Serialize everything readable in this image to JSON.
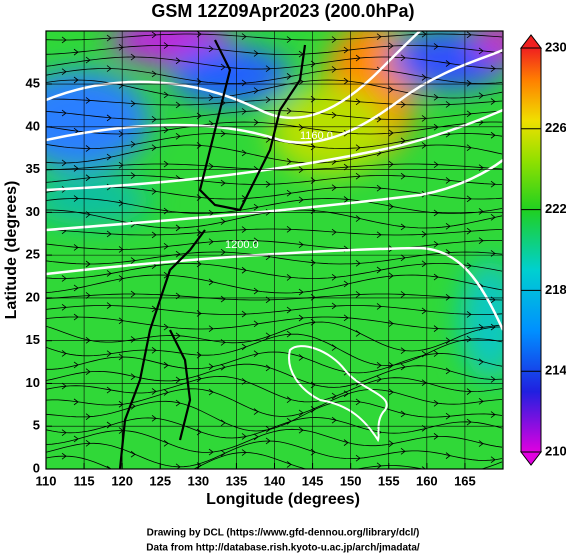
{
  "chart_data": {
    "type": "contour-map",
    "title": "GSM 12Z09Apr2023 (200.0hPa)",
    "xlabel": "Longitude (degrees)",
    "ylabel": "Latitude  (degrees)",
    "xlim": [
      110,
      170
    ],
    "ylim": [
      0,
      51.2
    ],
    "xticks": [
      110,
      115,
      120,
      125,
      130,
      135,
      140,
      145,
      150,
      155,
      160,
      165
    ],
    "yticks": [
      0,
      5,
      10,
      15,
      20,
      25,
      30,
      35,
      40,
      45
    ],
    "grid": true,
    "colorbar": {
      "lim": [
        210,
        230
      ],
      "ticks": [
        210,
        214,
        218,
        222,
        226,
        230
      ]
    },
    "contour_labels": [
      "1160.0",
      "1200.0"
    ],
    "credits": [
      "Drawing by DCL (https://www.gfd-dennou.org/library/dcl/)",
      "Data from http://database.rish.kyoto-u.ac.jp/arch/jmadata/"
    ]
  }
}
